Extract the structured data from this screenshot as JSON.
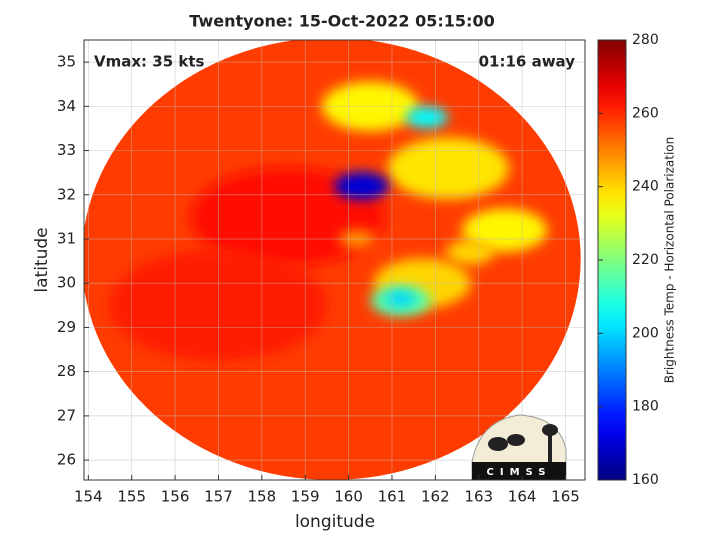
{
  "chart_data": {
    "type": "heatmap",
    "title": "Twentyone: 15-Oct-2022 05:15:00",
    "annotations": [
      "Vmax: 35 kts",
      "01:16 away"
    ],
    "xlabel": "longitude",
    "ylabel": "latitude",
    "xlim": [
      153.9,
      165.45
    ],
    "ylim": [
      25.55,
      35.5
    ],
    "xticks": [
      154,
      155,
      156,
      157,
      158,
      159,
      160,
      161,
      162,
      163,
      164,
      165
    ],
    "yticks": [
      26,
      27,
      28,
      29,
      30,
      31,
      32,
      33,
      34,
      35
    ],
    "grid": true,
    "colormap": "jet",
    "colorbar": {
      "label": "Brightness Temp - Horizontal Polarization",
      "lim": [
        160,
        280
      ],
      "ticks": [
        160,
        180,
        200,
        220,
        240,
        260,
        280
      ]
    },
    "swath": {
      "center": [
        159.6,
        30.55
      ],
      "radii": [
        5.75,
        5.0
      ],
      "value": 258
    },
    "x": [
      158.6,
      157.0,
      162.3,
      160.5,
      163.6,
      161.7,
      161.2,
      160.3,
      161.8,
      161.2,
      160.2,
      162.8
    ],
    "y": [
      31.5,
      29.5,
      32.6,
      34.0,
      31.2,
      30.0,
      29.6,
      32.2,
      33.75,
      29.65,
      31.0,
      30.7
    ],
    "sizes": [
      1.6,
      1.8,
      1.0,
      0.8,
      0.7,
      0.8,
      0.5,
      0.45,
      0.35,
      0.25,
      0.3,
      0.4
    ],
    "values": [
      264,
      262,
      238,
      236,
      236,
      240,
      215,
      170,
      205,
      200,
      248,
      240
    ],
    "logo": "CIMSS"
  }
}
